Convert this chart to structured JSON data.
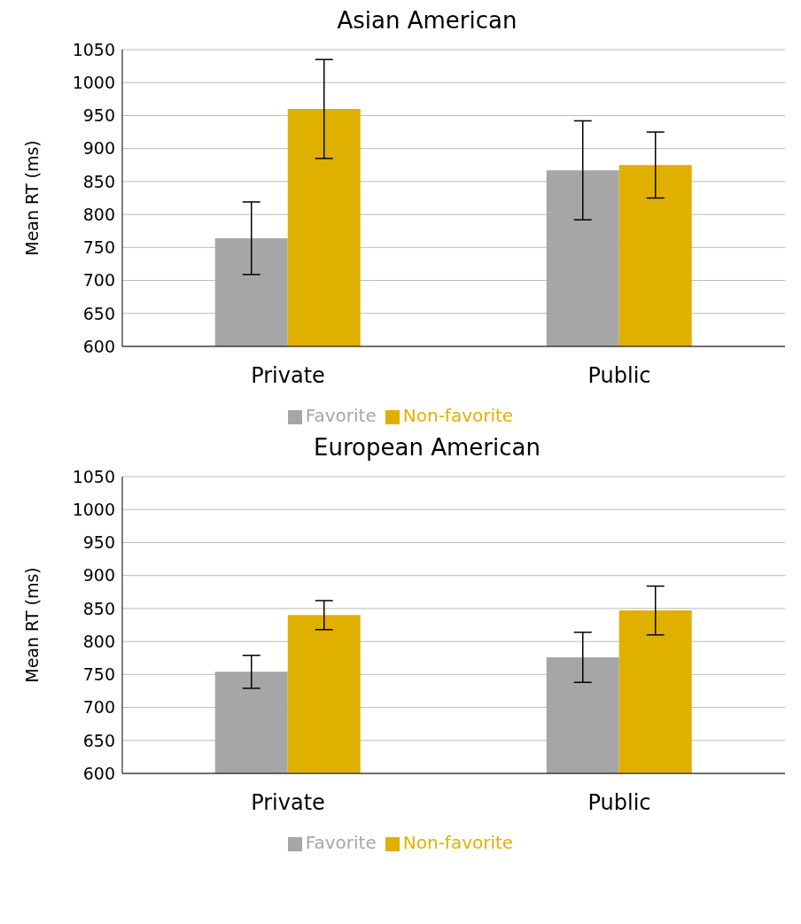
{
  "chart_data": [
    {
      "type": "bar",
      "title": "Asian American",
      "ylabel": "Mean RT (ms)",
      "categories": [
        "Private",
        "Public"
      ],
      "series": [
        {
          "name": "Favorite",
          "color": "#a6a6a6",
          "values": [
            764,
            867
          ],
          "errors": [
            55,
            75
          ]
        },
        {
          "name": "Non-favorite",
          "color": "#e0b000",
          "values": [
            960,
            875
          ],
          "errors": [
            75,
            50
          ]
        }
      ],
      "ylim": [
        600,
        1050
      ],
      "yticks": [
        600,
        650,
        700,
        750,
        800,
        850,
        900,
        950,
        1000,
        1050
      ],
      "grid": "y",
      "legend": "bottom"
    },
    {
      "type": "bar",
      "title": "European American",
      "ylabel": "Mean RT (ms)",
      "categories": [
        "Private",
        "Public"
      ],
      "series": [
        {
          "name": "Favorite",
          "color": "#a6a6a6",
          "values": [
            754,
            776
          ],
          "errors": [
            25,
            38
          ]
        },
        {
          "name": "Non-favorite",
          "color": "#e0b000",
          "values": [
            840,
            847
          ],
          "errors": [
            22,
            37
          ]
        }
      ],
      "ylim": [
        600,
        1050
      ],
      "yticks": [
        600,
        650,
        700,
        750,
        800,
        850,
        900,
        950,
        1000,
        1050
      ],
      "grid": "y",
      "legend": "bottom"
    }
  ]
}
